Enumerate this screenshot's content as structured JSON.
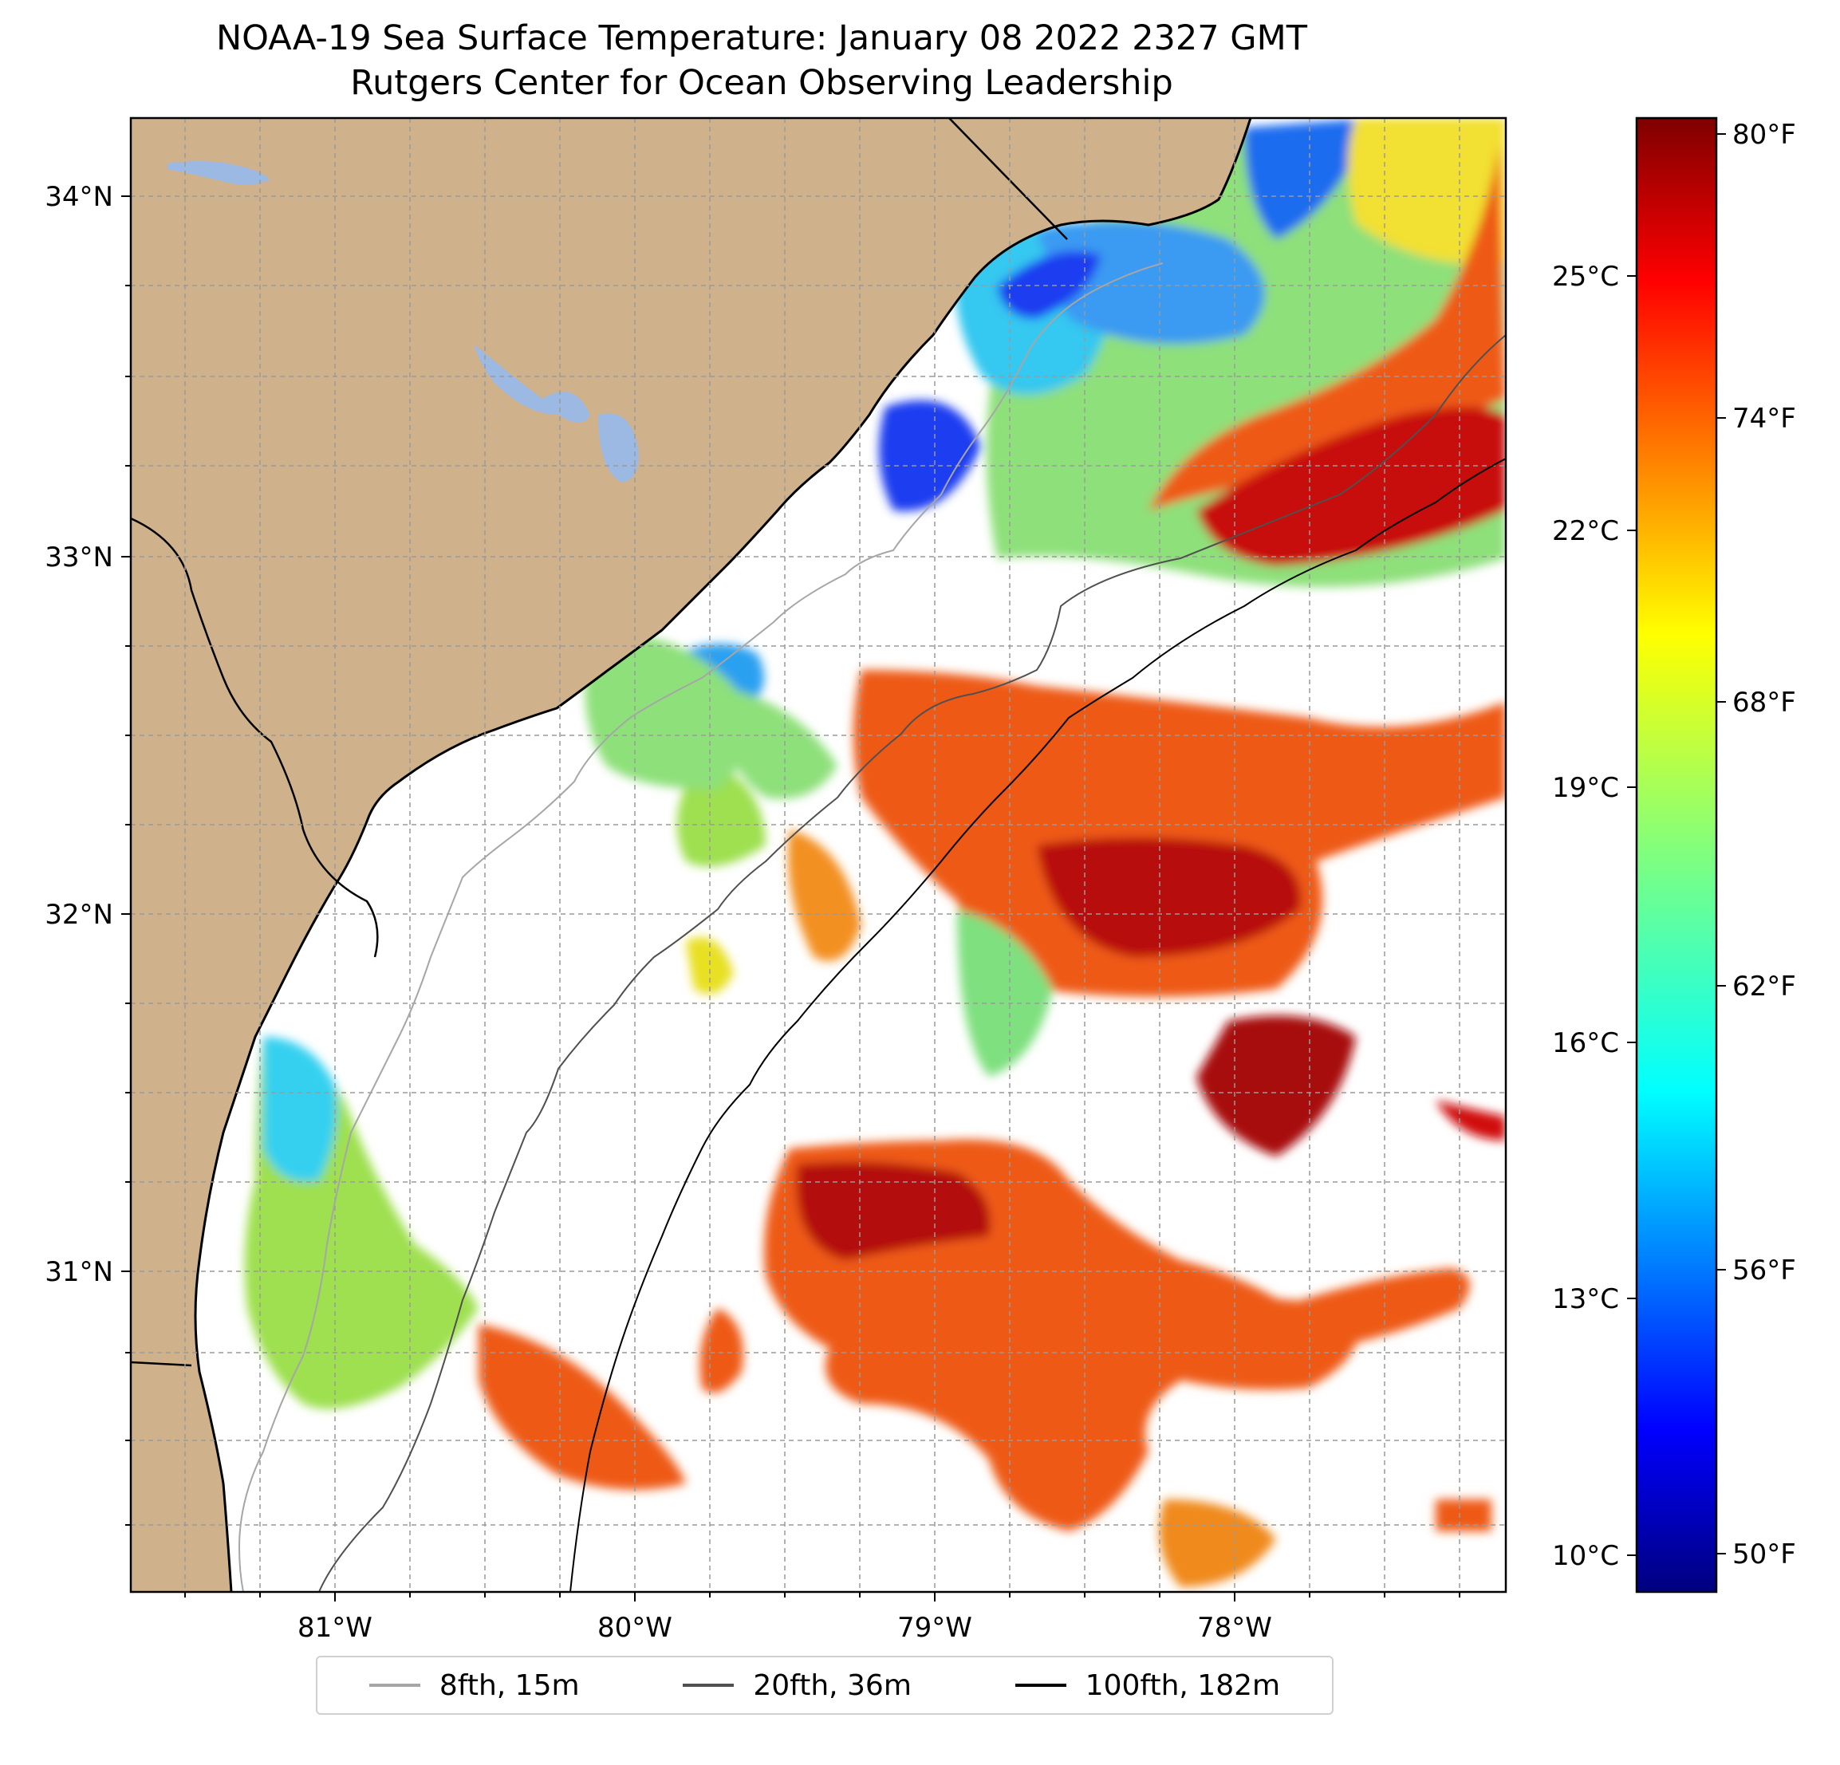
{
  "title": "NOAA-19 Sea Surface Temperature: January 08 2022 2327 GMT",
  "subtitle": "Rutgers Center for Ocean Observing Leadership",
  "colors": {
    "land": "#cfb28b",
    "lakes": "#9bb9e3",
    "coast": "#000000",
    "contour_15m": "#a6a6a6",
    "contour_36m": "#505050",
    "contour_182m": "#000000"
  },
  "lat_ticks": [
    "34°N",
    "33°N",
    "32°N",
    "31°N"
  ],
  "lon_ticks": [
    "81°W",
    "80°W",
    "79°W",
    "78°W"
  ],
  "colorbar": {
    "celsius_ticks": [
      "25°C",
      "22°C",
      "19°C",
      "16°C",
      "13°C",
      "10°C"
    ],
    "fahrenheit_ticks": [
      "80°F",
      "74°F",
      "68°F",
      "62°F",
      "56°F",
      "50°F"
    ],
    "colormap": "jet"
  },
  "legend": [
    {
      "label": "8fth, 15m",
      "color": "#a6a6a6"
    },
    {
      "label": "20fth, 36m",
      "color": "#505050"
    },
    {
      "label": "100fth, 182m",
      "color": "#000000"
    }
  ]
}
